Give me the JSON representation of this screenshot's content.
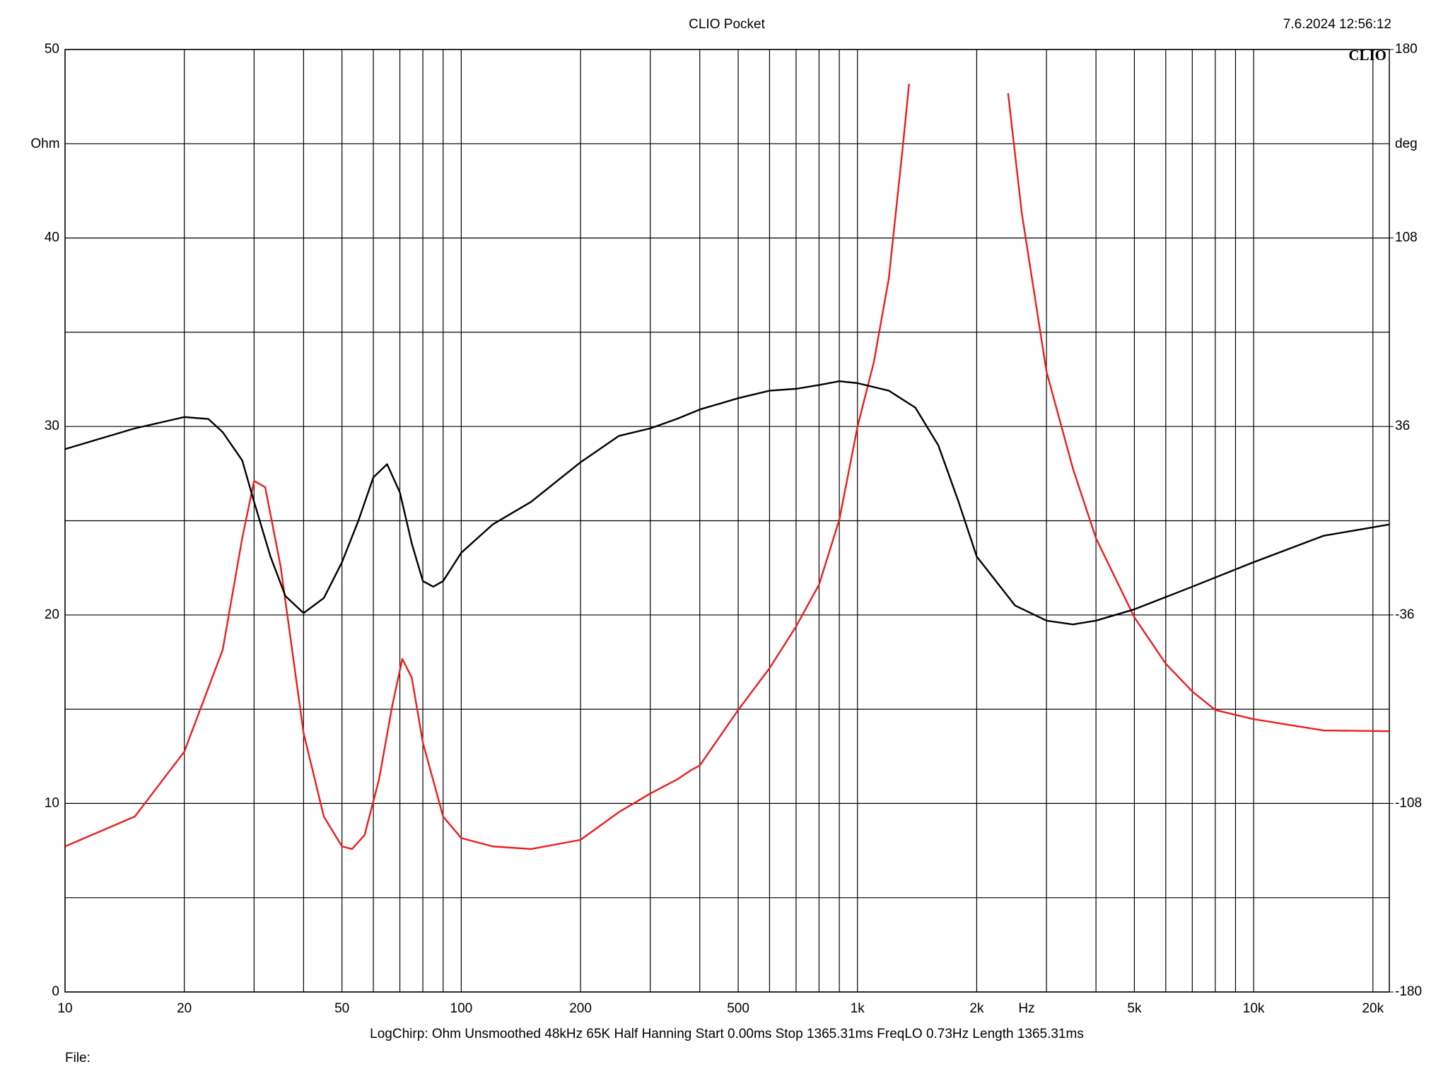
{
  "chart_data": {
    "type": "line",
    "title": "CLIO Pocket",
    "timestamp": "7.6.2024 12:56:12",
    "logo": "CLIO",
    "ylabel": "Ohm",
    "y2label": "deg",
    "xlabel": "Hz",
    "footer": "LogChirp:  Ohm   Unsmoothed   48kHz   65K   Half Hanning   Start 0.00ms    Stop 1365.31ms    FreqLO 0.73Hz    Length 1365.31ms",
    "file_label": "File:",
    "xscale": "log",
    "xlim": [
      10,
      22000
    ],
    "xticks": [
      10,
      20,
      50,
      100,
      200,
      500,
      {
        "value": 1000,
        "label": "1k"
      },
      {
        "value": 2000,
        "label": "2k"
      },
      {
        "value": 5000,
        "label": "5k"
      },
      {
        "value": 10000,
        "label": "10k"
      },
      {
        "value": 20000,
        "label": "20k"
      }
    ],
    "xminorticks": [
      30,
      40,
      60,
      70,
      80,
      90,
      300,
      400,
      600,
      700,
      800,
      900,
      3000,
      4000,
      6000,
      7000,
      8000,
      9000
    ],
    "ylim": [
      0,
      50
    ],
    "yticks": [
      0,
      10,
      20,
      30,
      40,
      50
    ],
    "yminorticks": [
      5,
      15,
      25,
      35,
      45
    ],
    "y2lim": [
      -180,
      180
    ],
    "y2ticks": [
      -180,
      -108,
      -36,
      36,
      108,
      180
    ],
    "grid": true,
    "series": [
      {
        "color": "#000000",
        "x": [
          10,
          15,
          20,
          23,
          25,
          28,
          30,
          33,
          36,
          40,
          45,
          50,
          55,
          60,
          65,
          70,
          75,
          80,
          85,
          90,
          100,
          120,
          150,
          200,
          250,
          300,
          350,
          400,
          500,
          600,
          700,
          800,
          900,
          1000,
          1200,
          1400,
          1600,
          1800,
          2000,
          2500,
          3000,
          3500,
          4000,
          5000,
          7000,
          10000,
          15000,
          22000
        ],
        "values": [
          28.8,
          29.9,
          30.5,
          30.4,
          29.7,
          28.2,
          26.0,
          23.1,
          21.0,
          20.1,
          20.9,
          22.8,
          25.0,
          27.3,
          28.0,
          26.5,
          23.8,
          21.8,
          21.5,
          21.8,
          23.3,
          24.8,
          26.0,
          28.1,
          29.5,
          29.9,
          30.4,
          30.9,
          31.5,
          31.9,
          32.0,
          32.2,
          32.4,
          32.3,
          31.9,
          31.0,
          29.0,
          26.0,
          23.1,
          20.5,
          19.7,
          19.5,
          19.7,
          20.3,
          21.5,
          22.8,
          24.2,
          24.8
        ]
      },
      {
        "color": "#ee1c1c",
        "axis": "y2",
        "x": [
          10,
          15,
          20,
          25,
          28,
          30,
          32,
          35,
          40,
          45,
          50,
          53,
          57,
          62,
          67,
          71,
          75,
          80,
          90,
          100,
          120,
          150,
          200,
          250,
          300,
          350,
          380,
          400,
          500,
          600,
          700,
          800,
          900,
          1000,
          1100,
          1200,
          1300,
          1350,
          1400,
          2000,
          2400,
          2600,
          3000,
          3500,
          4000,
          5000,
          6000,
          7000,
          8000,
          10000,
          15000,
          22000
        ],
        "values": [
          -124.4,
          -113,
          -88.2,
          -49.3,
          -6.7,
          15.2,
          12.8,
          -17.4,
          -81.1,
          -113,
          -124.4,
          -125.4,
          -120.1,
          -98.9,
          -70.5,
          -52.8,
          -59.9,
          -84.7,
          -113,
          -121.2,
          -124.4,
          -125.4,
          -121.9,
          -111.3,
          -104.2,
          -98.9,
          -95.3,
          -93.5,
          -72.3,
          -56.3,
          -40.4,
          -24.4,
          0.4,
          35.8,
          60.6,
          92.5,
          142.1,
          166.9,
          null,
          null,
          163.3,
          117.3,
          57,
          19.8,
          -6.7,
          -36.9,
          -54.6,
          -65.2,
          -72.3,
          -75.8,
          -80.1,
          -80.4
        ]
      }
    ]
  }
}
